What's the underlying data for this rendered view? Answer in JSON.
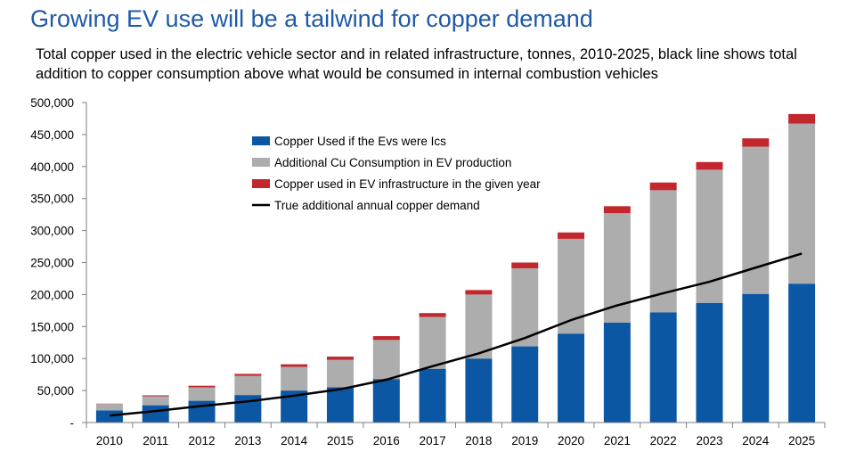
{
  "title": "Growing EV use will be a tailwind for copper demand",
  "subtitle": "Total copper used in the electric vehicle sector and in related infrastructure, tonnes, 2010-2025, black line shows total addition to copper consumption above what would be consumed in internal combustion vehicles",
  "colors": {
    "title": "#1f5aa6",
    "ice_copper": "#0b57a4",
    "ev_additional": "#adadad",
    "infrastructure": "#c1272d",
    "line": "#000000"
  },
  "chart_data": {
    "type": "bar",
    "stacked": true,
    "categories": [
      "2010",
      "2011",
      "2012",
      "2013",
      "2014",
      "2015",
      "2016",
      "2017",
      "2018",
      "2019",
      "2020",
      "2021",
      "2022",
      "2023",
      "2024",
      "2025"
    ],
    "series": [
      {
        "name": "Copper Used if the Evs were Ics",
        "type": "bar",
        "color": "#0b57a4",
        "values": [
          19000,
          27000,
          34000,
          43000,
          50000,
          55000,
          68000,
          84000,
          100000,
          119000,
          139000,
          156000,
          172000,
          187000,
          201000,
          217000
        ]
      },
      {
        "name": "Additional Cu Consumption in EV production",
        "type": "bar",
        "color": "#adadad",
        "values": [
          10000,
          14000,
          21000,
          30000,
          37000,
          43000,
          61000,
          81000,
          100000,
          122000,
          148000,
          171000,
          191000,
          208000,
          230000,
          250000
        ]
      },
      {
        "name": "Copper used in EV infrastructure in the given year",
        "type": "bar",
        "color": "#c1272d",
        "values": [
          500,
          1500,
          2500,
          3000,
          4000,
          5000,
          6000,
          6000,
          7000,
          9000,
          10000,
          11000,
          12000,
          12000,
          13000,
          15000
        ]
      },
      {
        "name": "True additional annual copper demand",
        "type": "line",
        "color": "#000000",
        "values": [
          11000,
          18000,
          26000,
          33000,
          42000,
          52000,
          67000,
          88000,
          108000,
          132000,
          160000,
          183000,
          202000,
          220000,
          242000,
          264000
        ]
      }
    ],
    "yticks": [
      "-",
      "50,000",
      "100,000",
      "150,000",
      "200,000",
      "250,000",
      "300,000",
      "350,000",
      "400,000",
      "450,000",
      "500,000"
    ],
    "ylim": [
      0,
      500000
    ],
    "ytick_step": 50000,
    "grid": false,
    "legend_position": "top-left"
  }
}
